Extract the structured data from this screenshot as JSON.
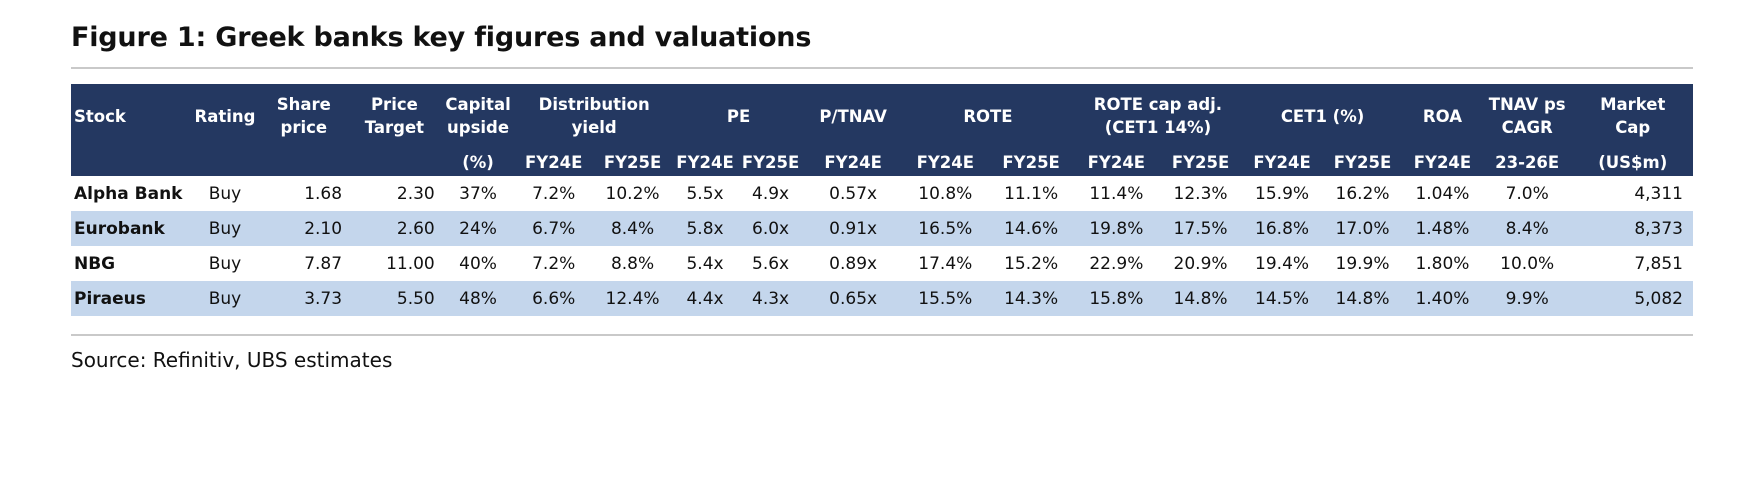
{
  "title": "Figure 1: Greek banks key figures and valuations",
  "header1": {
    "stock": "Stock",
    "rating": "Rating",
    "share_price": [
      "Share",
      "price"
    ],
    "price_target": [
      "Price",
      "Target"
    ],
    "capital_upside": [
      "Capital",
      "upside"
    ],
    "distribution_yield": [
      "Distribution",
      "yield"
    ],
    "pe": "PE",
    "ptnav": "P/TNAV",
    "rote": "ROTE",
    "rote_cap_adj": [
      "ROTE cap adj.",
      "(CET1 14%)"
    ],
    "cet1": "CET1 (%)",
    "roa": "ROA",
    "tnav_cagr": [
      "TNAV ps",
      "CAGR"
    ],
    "market_cap": [
      "Market",
      "Cap"
    ]
  },
  "header2": [
    "(%)",
    "FY24E",
    "FY25E",
    "FY24E",
    "FY25E",
    "FY24E",
    "FY24E",
    "FY25E",
    "FY24E",
    "FY25E",
    "FY24E",
    "FY25E",
    "FY24E",
    "23-26E",
    "(US$m)"
  ],
  "rows": [
    [
      "Alpha Bank",
      "Buy",
      "1.68",
      "2.30",
      "37%",
      "7.2%",
      "10.2%",
      "5.5x",
      "4.9x",
      "0.57x",
      "10.8%",
      "11.1%",
      "11.4%",
      "12.3%",
      "15.9%",
      "16.2%",
      "1.04%",
      "7.0%",
      "4,311"
    ],
    [
      "Eurobank",
      "Buy",
      "2.10",
      "2.60",
      "24%",
      "6.7%",
      "8.4%",
      "5.8x",
      "6.0x",
      "0.91x",
      "16.5%",
      "14.6%",
      "19.8%",
      "17.5%",
      "16.8%",
      "17.0%",
      "1.48%",
      "8.4%",
      "8,373"
    ],
    [
      "NBG",
      "Buy",
      "7.87",
      "11.00",
      "40%",
      "7.2%",
      "8.8%",
      "5.4x",
      "5.6x",
      "0.89x",
      "17.4%",
      "15.2%",
      "22.9%",
      "20.9%",
      "19.4%",
      "19.9%",
      "1.80%",
      "10.0%",
      "7,851"
    ],
    [
      "Piraeus",
      "Buy",
      "3.73",
      "5.50",
      "48%",
      "6.6%",
      "12.4%",
      "4.4x",
      "4.3x",
      "0.65x",
      "15.5%",
      "14.3%",
      "15.8%",
      "14.8%",
      "14.5%",
      "14.8%",
      "1.40%",
      "9.9%",
      "5,082"
    ]
  ],
  "source": "Source: Refinitiv, UBS estimates",
  "colors": {
    "header_bg": "#243861",
    "band_bg": "#c4d6ec",
    "rule": "#c9c9c9"
  }
}
